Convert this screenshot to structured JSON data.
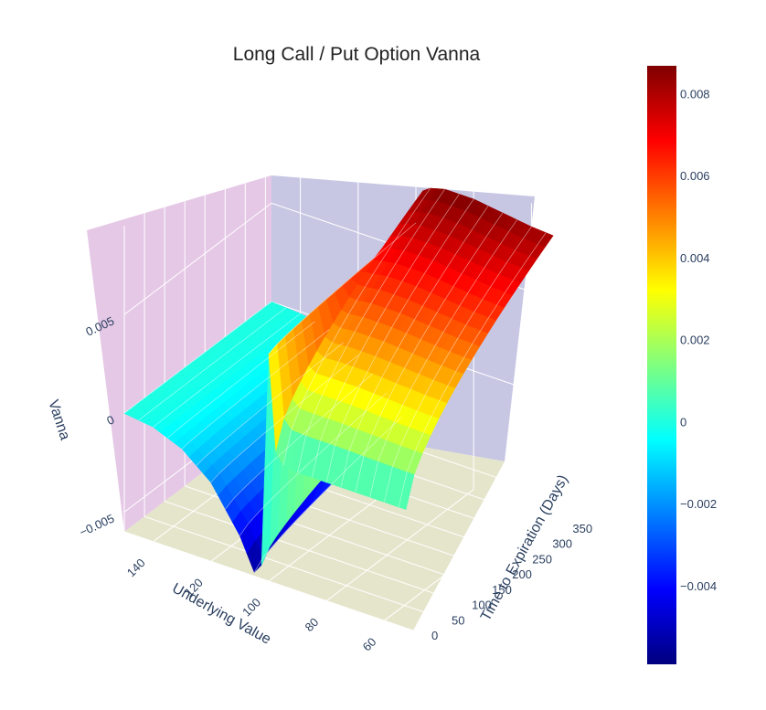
{
  "chart_data": {
    "type": "surface3d",
    "title": "Long Call / Put Option Vanna",
    "x_axis": {
      "label": "Underlying Value",
      "ticks": [
        "140",
        "120",
        "100",
        "80",
        "60"
      ]
    },
    "y_axis": {
      "label": "Time to Expiration (Days)",
      "ticks": [
        "0",
        "50",
        "100",
        "150",
        "200",
        "250",
        "300",
        "350"
      ]
    },
    "z_axis": {
      "label": "Vanna",
      "ticks": [
        "−0.005",
        "0",
        "0.005"
      ]
    },
    "colorbar": {
      "ticks": [
        "0.008",
        "0.006",
        "0.004",
        "0.002",
        "0",
        "−0.002",
        "−0.004"
      ],
      "range": [
        -0.0059,
        0.0087
      ],
      "colorscale": "jet"
    },
    "surface_profile": {
      "underlying_value": [
        150,
        140,
        130,
        120,
        110,
        105,
        102,
        101,
        100,
        99,
        98,
        95,
        90,
        80,
        70,
        60,
        50
      ],
      "vanna_at_max_time": [
        0.0,
        -0.0001,
        -0.0004,
        -0.0012,
        -0.0026,
        -0.0036,
        -0.0015,
        0.003,
        0.0065,
        0.0078,
        0.0082,
        0.0085,
        0.0087,
        0.0087,
        0.0085,
        0.0083,
        0.0082
      ],
      "vanna_at_min_time": [
        0.0,
        -0.0002,
        -0.0008,
        -0.002,
        -0.0042,
        -0.0058,
        -0.0052,
        0.001,
        0.0055,
        0.0025,
        0.0008,
        0.0001,
        0.0,
        0.0,
        0.0,
        0.0,
        0.0
      ]
    }
  }
}
